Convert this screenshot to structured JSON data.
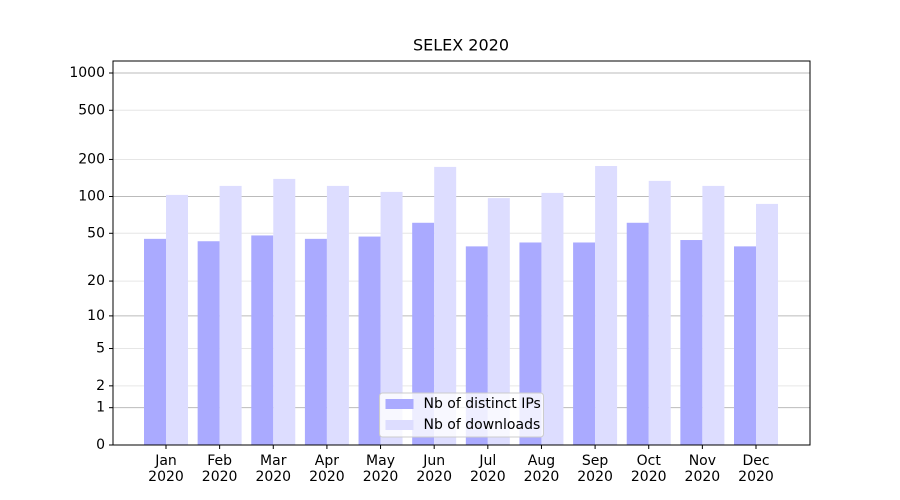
{
  "chart_data": {
    "type": "bar",
    "title": "SELEX 2020",
    "categories": [
      "Jan\n2020",
      "Feb\n2020",
      "Mar\n2020",
      "Apr\n2020",
      "May\n2020",
      "Jun\n2020",
      "Jul\n2020",
      "Aug\n2020",
      "Sep\n2020",
      "Oct\n2020",
      "Nov\n2020",
      "Dec\n2020"
    ],
    "series": [
      {
        "name": "Nb of distinct IPs",
        "color": "#aaaaff",
        "values": [
          45,
          43,
          48,
          45,
          47,
          61,
          39,
          42,
          42,
          61,
          44,
          39
        ]
      },
      {
        "name": "Nb of downloads",
        "color": "#ddddff",
        "values": [
          103,
          122,
          139,
          122,
          109,
          174,
          97,
          107,
          177,
          134,
          122,
          87
        ]
      }
    ],
    "yscale": "log1p",
    "ylim": [
      0,
      1250
    ],
    "yticks": [
      0,
      1,
      2,
      5,
      10,
      20,
      50,
      100,
      200,
      500,
      1000
    ],
    "grid": true,
    "legend": "lower center"
  }
}
